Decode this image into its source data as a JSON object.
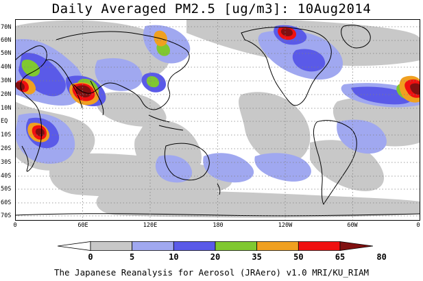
{
  "title": "Daily Averaged PM2.5 [ug/m3]: 10Aug2014",
  "lat_labels": [
    "70N",
    "60N",
    "50N",
    "40N",
    "30N",
    "20N",
    "10N",
    "EQ",
    "10S",
    "20S",
    "30S",
    "40S",
    "50S",
    "60S",
    "70S"
  ],
  "lon_labels": [
    "0",
    "60E",
    "120E",
    "180",
    "120W",
    "60W",
    "0"
  ],
  "colorbar": {
    "ticks": [
      "0",
      "5",
      "10",
      "20",
      "35",
      "50",
      "65",
      "80"
    ],
    "colors": [
      "#ffffff",
      "#c8c8c8",
      "#a0a8f0",
      "#5a5ae8",
      "#80c830",
      "#f0a020",
      "#f01010",
      "#801010"
    ]
  },
  "footer": "The Japanese Reanalysis for Aerosol (JRAero) v1.0 MRI/KU_RIAM"
}
